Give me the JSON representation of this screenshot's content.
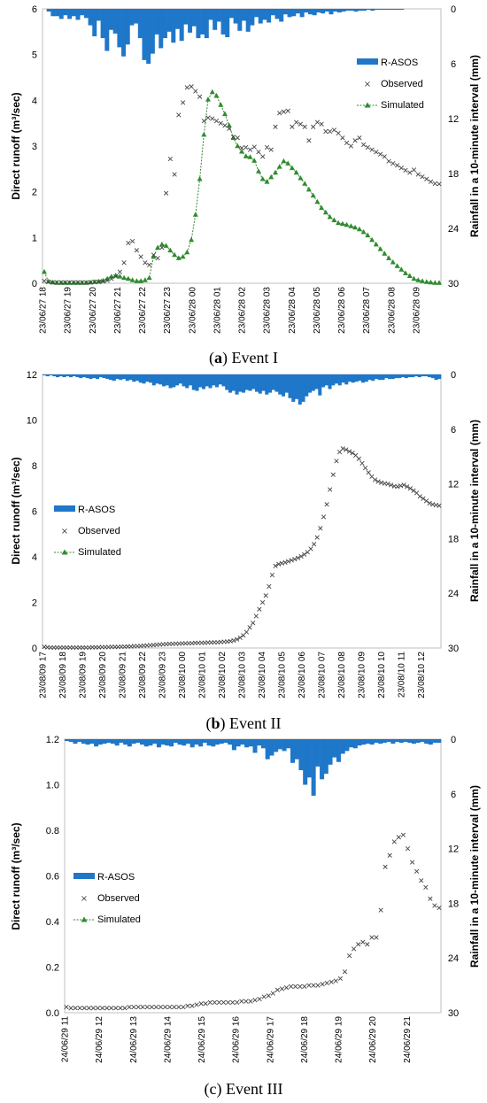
{
  "colors": {
    "rain": "#1f77c9",
    "observed": "#444444",
    "simulated": "#2e8b2e",
    "frame": "#bfbfbf"
  },
  "legend": {
    "rain": "R-ASOS",
    "observed": "Observed",
    "simulated": "Simulated"
  },
  "chart_data": [
    {
      "id": "event1",
      "type": "line",
      "caption_letter": "a",
      "caption_rest": "Event I",
      "ylabel": "Direct runoff (m³/sec)",
      "y2label": "Rainfall in a 10-minute interval (mm)",
      "ylim": [
        0,
        6
      ],
      "yticks": [
        "0",
        "1",
        "2",
        "3",
        "4",
        "5",
        "6"
      ],
      "y2lim": [
        0,
        30
      ],
      "y2ticks": [
        "0",
        "6",
        "12",
        "18",
        "24",
        "30"
      ],
      "xlim": [
        0,
        16
      ],
      "x_categories": [
        "23/06/27 18",
        "23/06/27 19",
        "23/06/27 20",
        "23/06/27 21",
        "23/06/27 22",
        "23/06/27 23",
        "23/06/28 00",
        "23/06/28 01",
        "23/06/28 02",
        "23/06/28 03",
        "23/06/28 04",
        "23/06/28 05",
        "23/06/28 06",
        "23/06/28 07",
        "23/06/28 08",
        "23/06/28 09"
      ],
      "legend_position": "top-right",
      "rain_mm": [
        0,
        0.3,
        0.8,
        0.8,
        1.1,
        0.7,
        1.1,
        0.8,
        1.2,
        0.7,
        1.0,
        1.8,
        3.0,
        1.3,
        3.2,
        4.6,
        2.3,
        2.7,
        4.2,
        5.2,
        3.9,
        1.8,
        1.6,
        3.2,
        5.6,
        6.0,
        4.9,
        2.8,
        4.3,
        3.2,
        2.5,
        3.7,
        2.2,
        3.5,
        1.7,
        2.6,
        1.9,
        3.2,
        2.8,
        3.2,
        1.2,
        2.3,
        1.4,
        2.8,
        3.1,
        1.0,
        1.6,
        2.4,
        1.3,
        2.5,
        1.8,
        0.9,
        1.6,
        1.2,
        1.5,
        0.7,
        1.1,
        1.4,
        0.6,
        0.9,
        0.8,
        0.5,
        0.9,
        0.4,
        0.6,
        0.7,
        0.4,
        0.5,
        0.3,
        0.6,
        0.3,
        0.4,
        0.3,
        0.2,
        0.2,
        0.3,
        0.2,
        0.2,
        0.1,
        0.2,
        0.1,
        0.1,
        0.1,
        0.1,
        0.1,
        0.1,
        0.1,
        0,
        0,
        0,
        0,
        0,
        0,
        0,
        0,
        0
      ],
      "observed": [
        0.05,
        0.03,
        0.02,
        0.02,
        0.02,
        0.02,
        0.02,
        0.02,
        0.02,
        0.02,
        0.02,
        0.02,
        0.03,
        0.03,
        0.04,
        0.06,
        0.1,
        0.15,
        0.25,
        0.45,
        0.88,
        0.92,
        0.72,
        0.58,
        0.45,
        0.4,
        0.62,
        0.55,
        0.78,
        1.97,
        2.72,
        2.38,
        3.68,
        3.95,
        4.28,
        4.3,
        4.2,
        4.08,
        3.55,
        3.62,
        3.6,
        3.55,
        3.5,
        3.45,
        3.38,
        3.2,
        3.18,
        2.96,
        2.97,
        2.92,
        2.98,
        2.87,
        2.77,
        2.97,
        2.92,
        3.42,
        3.72,
        3.75,
        3.77,
        3.42,
        3.52,
        3.48,
        3.42,
        3.12,
        3.42,
        3.52,
        3.48,
        3.32,
        3.32,
        3.35,
        3.28,
        3.18,
        3.07,
        3.0,
        3.12,
        3.18,
        3.03,
        2.97,
        2.92,
        2.87,
        2.82,
        2.77,
        2.67,
        2.62,
        2.58,
        2.52,
        2.47,
        2.42,
        2.48,
        2.38,
        2.33,
        2.28,
        2.22,
        2.18,
        2.17
      ],
      "simulated": [
        0.25,
        0.04,
        0.02,
        0.01,
        0.01,
        0.01,
        0.01,
        0.01,
        0.01,
        0.01,
        0.01,
        0.02,
        0.03,
        0.04,
        0.06,
        0.1,
        0.15,
        0.17,
        0.15,
        0.12,
        0.1,
        0.07,
        0.05,
        0.05,
        0.07,
        0.12,
        0.58,
        0.78,
        0.85,
        0.82,
        0.72,
        0.62,
        0.55,
        0.58,
        0.68,
        0.95,
        1.5,
        2.28,
        3.25,
        4.02,
        4.18,
        4.1,
        3.9,
        3.7,
        3.45,
        3.18,
        3.0,
        2.88,
        2.78,
        2.76,
        2.68,
        2.45,
        2.28,
        2.22,
        2.32,
        2.42,
        2.55,
        2.67,
        2.62,
        2.52,
        2.42,
        2.3,
        2.18,
        2.05,
        1.92,
        1.78,
        1.65,
        1.55,
        1.45,
        1.38,
        1.32,
        1.3,
        1.28,
        1.25,
        1.22,
        1.18,
        1.12,
        1.05,
        0.95,
        0.85,
        0.75,
        0.65,
        0.55,
        0.46,
        0.38,
        0.3,
        0.22,
        0.16,
        0.1,
        0.07,
        0.05,
        0.03,
        0.02,
        0.01,
        0.01
      ]
    },
    {
      "id": "event2",
      "type": "line",
      "caption_letter": "b",
      "caption_rest": "Event II",
      "ylabel": "Direct runoff (m³/sec)",
      "y2label": "Rainfall in a 10-minute interval (mm)",
      "ylim": [
        0,
        12
      ],
      "yticks": [
        "0",
        "2",
        "4",
        "6",
        "8",
        "10",
        "12"
      ],
      "y2lim": [
        0,
        30
      ],
      "y2ticks": [
        "0",
        "6",
        "12",
        "18",
        "24",
        "30"
      ],
      "xlim": [
        0,
        20
      ],
      "x_categories": [
        "23/08/09 17",
        "23/08/09 18",
        "23/08/09 19",
        "23/08/09 20",
        "23/08/09 21",
        "23/08/09 22",
        "23/08/09 23",
        "23/08/10 00",
        "23/08/10 01",
        "23/08/10 02",
        "23/08/10 03",
        "23/08/10 04",
        "23/08/10 05",
        "23/08/10 06",
        "23/08/10 07",
        "23/08/10 08",
        "23/08/10 09",
        "23/08/10 10",
        "23/08/10 11",
        "23/08/10 12"
      ],
      "legend_position": "center-left",
      "rain_mm": [
        0.1,
        0.2,
        0.1,
        0.2,
        0.3,
        0.2,
        0.3,
        0.2,
        0.3,
        0.2,
        0.3,
        0.4,
        0.3,
        0.4,
        0.5,
        0.4,
        0.5,
        0.3,
        0.4,
        0.5,
        0.6,
        0.7,
        0.5,
        0.6,
        0.5,
        0.7,
        0.6,
        0.8,
        0.7,
        0.9,
        1.0,
        0.8,
        0.9,
        1.2,
        1.0,
        1.1,
        1.3,
        1.2,
        1.5,
        1.4,
        1.2,
        1.0,
        1.3,
        1.5,
        1.2,
        1.7,
        1.8,
        1.4,
        1.6,
        1.3,
        1.5,
        1.2,
        1.4,
        1.1,
        1.3,
        1.7,
        2.0,
        1.8,
        2.2,
        1.9,
        2.0,
        1.7,
        1.8,
        1.6,
        1.9,
        2.1,
        1.8,
        2.2,
        2.0,
        1.7,
        1.9,
        2.2,
        2.4,
        2.0,
        2.6,
        3.0,
        2.7,
        3.3,
        3.0,
        2.4,
        2.0,
        1.8,
        1.6,
        2.3,
        1.4,
        1.2,
        1.6,
        1.2,
        1.0,
        1.2,
        0.9,
        1.1,
        0.8,
        0.9,
        0.8,
        0.7,
        0.9,
        0.8,
        0.6,
        0.7,
        0.5,
        0.6,
        0.6,
        0.4,
        0.5,
        0.5,
        0.4,
        0.4,
        0.3,
        0.4,
        0.3,
        0.3,
        0.2,
        0.3,
        0.2,
        0.2,
        0.3,
        0.4,
        0.6,
        0.5
      ],
      "observed": [
        0.05,
        0.03,
        0.02,
        0.02,
        0.02,
        0.02,
        0.02,
        0.02,
        0.02,
        0.02,
        0.02,
        0.02,
        0.02,
        0.02,
        0.02,
        0.03,
        0.03,
        0.03,
        0.04,
        0.04,
        0.04,
        0.05,
        0.05,
        0.05,
        0.06,
        0.06,
        0.07,
        0.07,
        0.08,
        0.08,
        0.09,
        0.1,
        0.11,
        0.12,
        0.13,
        0.14,
        0.15,
        0.16,
        0.17,
        0.18,
        0.18,
        0.19,
        0.19,
        0.2,
        0.2,
        0.21,
        0.21,
        0.22,
        0.22,
        0.23,
        0.23,
        0.24,
        0.24,
        0.25,
        0.25,
        0.26,
        0.27,
        0.28,
        0.3,
        0.33,
        0.38,
        0.45,
        0.55,
        0.7,
        0.9,
        1.1,
        1.4,
        1.7,
        2.0,
        2.3,
        2.7,
        3.2,
        3.6,
        3.68,
        3.72,
        3.75,
        3.8,
        3.85,
        3.9,
        3.95,
        4.02,
        4.1,
        4.2,
        4.35,
        4.55,
        4.85,
        5.25,
        5.75,
        6.3,
        6.95,
        7.6,
        8.2,
        8.6,
        8.75,
        8.7,
        8.62,
        8.55,
        8.45,
        8.3,
        8.1,
        7.9,
        7.7,
        7.52,
        7.38,
        7.3,
        7.25,
        7.22,
        7.2,
        7.15,
        7.1,
        7.08,
        7.12,
        7.15,
        7.08,
        7.0,
        6.9,
        6.8,
        6.65,
        6.55,
        6.45,
        6.35,
        6.3,
        6.27,
        6.24
      ]
    },
    {
      "id": "event3",
      "type": "line",
      "caption_letter": "",
      "caption_rest": "(c) Event III",
      "ylabel": "Direct runoff (m³/sec)",
      "y2label": "Rainfall in a 10-minute interval (mm)",
      "ylim": [
        0,
        1.2
      ],
      "yticks": [
        "0.0",
        "0.2",
        "0.4",
        "0.6",
        "0.8",
        "1.0",
        "1.2"
      ],
      "y2lim": [
        0,
        30
      ],
      "y2ticks": [
        "0",
        "6",
        "12",
        "18",
        "24",
        "30"
      ],
      "xlim": [
        0,
        11
      ],
      "x_categories": [
        "24/06/29 11",
        "24/06/29 12",
        "24/06/29 13",
        "24/06/29 14",
        "24/06/29 15",
        "24/06/29 16",
        "24/06/29 17",
        "24/06/29 18",
        "24/06/29 19",
        "24/06/29 20",
        "24/06/29 21"
      ],
      "legend_position": "center-left",
      "rain_mm": [
        0.2,
        0.3,
        0.5,
        0.3,
        0.5,
        0.6,
        0.5,
        0.8,
        0.6,
        0.5,
        0.4,
        0.5,
        0.7,
        0.4,
        0.6,
        0.8,
        0.5,
        0.4,
        0.6,
        0.8,
        0.7,
        0.5,
        0.9,
        0.6,
        0.7,
        0.8,
        0.4,
        0.6,
        0.7,
        0.5,
        0.9,
        0.6,
        0.8,
        0.4,
        0.7,
        0.8,
        0.6,
        0.5,
        0.4,
        0.6,
        1.2,
        0.8,
        0.6,
        0.9,
        0.8,
        1.5,
        0.7,
        1.0,
        2.2,
        1.8,
        1.4,
        1.1,
        1.3,
        1.0,
        2.6,
        2.2,
        3.4,
        5.0,
        4.2,
        6.2,
        3.0,
        4.4,
        3.8,
        2.8,
        2.0,
        2.5,
        1.6,
        1.3,
        0.9,
        1.0,
        0.7,
        0.6,
        0.5,
        0.6,
        0.4,
        0.5,
        0.4,
        0.3,
        0.5,
        0.3,
        0.4,
        0.3,
        0.4,
        0.5,
        0.4,
        0.3,
        0.5,
        0.6,
        0.4,
        0.4
      ],
      "observed": [
        0.025,
        0.02,
        0.02,
        0.02,
        0.02,
        0.02,
        0.02,
        0.02,
        0.02,
        0.02,
        0.02,
        0.02,
        0.02,
        0.02,
        0.025,
        0.025,
        0.025,
        0.025,
        0.025,
        0.025,
        0.025,
        0.025,
        0.025,
        0.025,
        0.025,
        0.025,
        0.025,
        0.03,
        0.03,
        0.035,
        0.04,
        0.04,
        0.045,
        0.045,
        0.045,
        0.045,
        0.045,
        0.045,
        0.045,
        0.05,
        0.05,
        0.05,
        0.055,
        0.06,
        0.07,
        0.075,
        0.085,
        0.1,
        0.105,
        0.11,
        0.115,
        0.115,
        0.115,
        0.115,
        0.12,
        0.12,
        0.12,
        0.125,
        0.13,
        0.135,
        0.14,
        0.15,
        0.18,
        0.25,
        0.28,
        0.3,
        0.31,
        0.3,
        0.33,
        0.33,
        0.45,
        0.64,
        0.69,
        0.75,
        0.77,
        0.78,
        0.72,
        0.66,
        0.62,
        0.58,
        0.55,
        0.5,
        0.47,
        0.46
      ]
    }
  ]
}
